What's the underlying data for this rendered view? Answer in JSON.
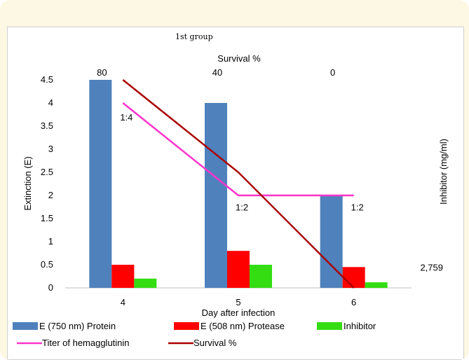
{
  "chart_data": {
    "type": "bar",
    "title": "1st group",
    "xlabel": "Day after infection",
    "ylabel": "Extinction (E)",
    "y2label": "Inhibitor (mg/ml)",
    "top_axis_label": "Survival %",
    "categories": [
      "4",
      "5",
      "6"
    ],
    "ylim": [
      0,
      4.5
    ],
    "yticks": [
      "0",
      "0.5",
      "1",
      "1.5",
      "2",
      "2.5",
      "3",
      "3.5",
      "4",
      "4.5"
    ],
    "survival_ticks": [
      "80",
      "40",
      "0"
    ],
    "bar_series": [
      {
        "name": "E (750 nm) Protein",
        "color": "#4f81bd",
        "values": [
          4.5,
          4.0,
          2.0
        ]
      },
      {
        "name": "E (508 nm) Protease",
        "color": "#ff0000",
        "values": [
          0.5,
          0.8,
          0.45
        ]
      },
      {
        "name": "Inhibitor",
        "color": "#33dd11",
        "values": [
          0.2,
          0.5,
          0.12
        ]
      }
    ],
    "line_series": [
      {
        "name": "Titer of hemagglutinin",
        "color": "#ff33cc",
        "x": [
          4,
          5,
          6
        ],
        "values": [
          4.0,
          2.0,
          2.0
        ]
      },
      {
        "name": "Survival %",
        "color": "#aa0000",
        "x": [
          4,
          5,
          6
        ],
        "values": [
          4.5,
          2.5,
          0.0
        ]
      }
    ],
    "annotations": [
      {
        "text": "1:4",
        "x": 4,
        "y": 3.7
      },
      {
        "text": "1:2",
        "x": 5,
        "y": 1.75
      },
      {
        "text": "1:2",
        "x": 6,
        "y": 1.75
      },
      {
        "text": "2,759",
        "x": 6.6,
        "y": 0.45
      }
    ],
    "legend": "bottom"
  }
}
